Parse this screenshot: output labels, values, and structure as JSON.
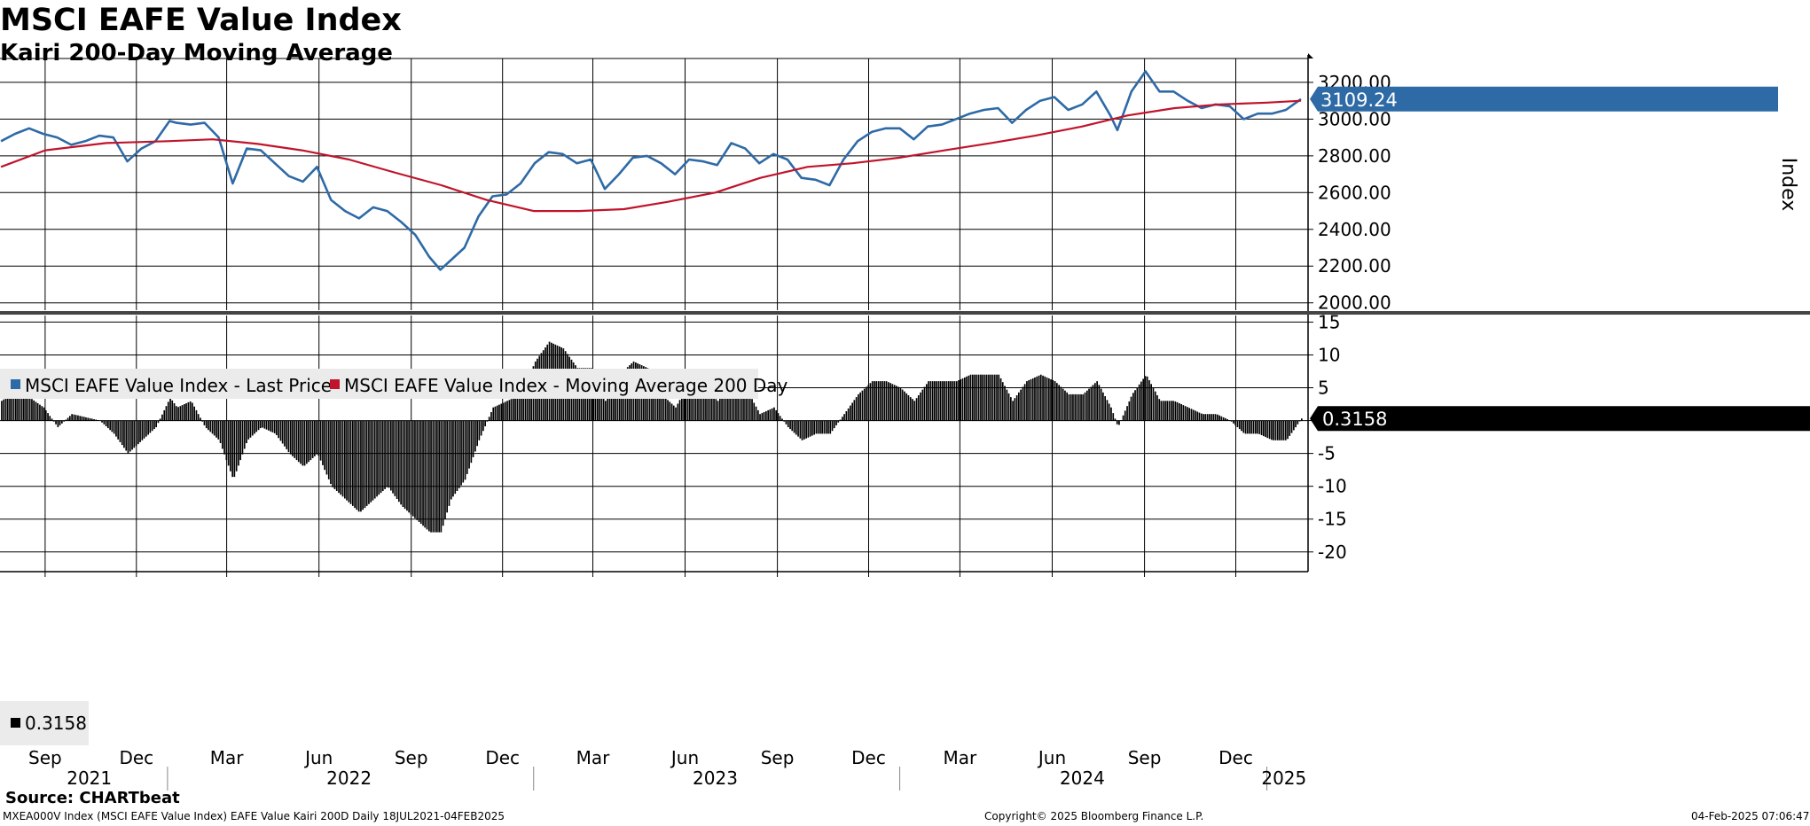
{
  "title": "MSCI EAFE Value Index",
  "subtitle": "Kairi 200-Day Moving Average",
  "colors": {
    "price": "#2e6aa6",
    "ma": "#c0142c",
    "bars": "#000000",
    "grid": "#000000",
    "legend_bg": "#ebebeb",
    "last_tag_bg": "#2e6aa6"
  },
  "chart_data": [
    {
      "type": "line",
      "title": "",
      "ylabel": "Index",
      "ylim": [
        1960,
        3330
      ],
      "ytick_labels": [
        "2000.00",
        "2200.00",
        "2400.00",
        "2600.00",
        "2800.00",
        "3000.00",
        "3200.00"
      ],
      "ytick_values": [
        2000,
        2200,
        2400,
        2600,
        2800,
        3000,
        3200
      ],
      "x_range": [
        "2021-07-18",
        "2025-02-04"
      ],
      "last_value_label": "3109.24",
      "legend": [
        {
          "label": "MSCI EAFE Value Index - Last Price",
          "color": "#2e6aa6"
        },
        {
          "label": "MSCI EAFE Value Index - Moving Average 200 Day",
          "color": "#c0142c"
        }
      ],
      "series": [
        {
          "name": "MSCI EAFE Value Index - Last Price",
          "x": [
            "2021-07-19",
            "2021-08-02",
            "2021-08-16",
            "2021-08-30",
            "2021-09-13",
            "2021-09-27",
            "2021-10-11",
            "2021-10-25",
            "2021-11-08",
            "2021-11-22",
            "2021-12-06",
            "2021-12-20",
            "2022-01-03",
            "2022-01-10",
            "2022-01-24",
            "2022-02-07",
            "2022-02-21",
            "2022-03-07",
            "2022-03-21",
            "2022-04-04",
            "2022-04-18",
            "2022-05-02",
            "2022-05-16",
            "2022-05-30",
            "2022-06-13",
            "2022-06-27",
            "2022-07-11",
            "2022-07-25",
            "2022-08-08",
            "2022-08-22",
            "2022-09-05",
            "2022-09-19",
            "2022-09-30",
            "2022-10-10",
            "2022-10-24",
            "2022-11-07",
            "2022-11-21",
            "2022-12-05",
            "2022-12-19",
            "2023-01-02",
            "2023-01-16",
            "2023-01-30",
            "2023-02-13",
            "2023-02-27",
            "2023-03-13",
            "2023-03-27",
            "2023-04-10",
            "2023-04-24",
            "2023-05-08",
            "2023-05-22",
            "2023-06-05",
            "2023-06-19",
            "2023-07-03",
            "2023-07-17",
            "2023-07-31",
            "2023-08-14",
            "2023-08-28",
            "2023-09-11",
            "2023-09-25",
            "2023-10-09",
            "2023-10-23",
            "2023-11-06",
            "2023-11-20",
            "2023-12-04",
            "2023-12-18",
            "2024-01-01",
            "2024-01-15",
            "2024-01-29",
            "2024-02-12",
            "2024-02-26",
            "2024-03-11",
            "2024-03-25",
            "2024-04-08",
            "2024-04-22",
            "2024-05-06",
            "2024-05-20",
            "2024-06-03",
            "2024-06-17",
            "2024-07-01",
            "2024-07-15",
            "2024-07-29",
            "2024-08-05",
            "2024-08-19",
            "2024-09-02",
            "2024-09-16",
            "2024-09-30",
            "2024-10-14",
            "2024-10-28",
            "2024-11-11",
            "2024-11-25",
            "2024-12-09",
            "2024-12-23",
            "2025-01-06",
            "2025-01-20",
            "2025-02-04"
          ],
          "values": [
            2880,
            2920,
            2950,
            2920,
            2900,
            2860,
            2880,
            2910,
            2900,
            2770,
            2840,
            2880,
            2990,
            2980,
            2970,
            2980,
            2900,
            2650,
            2840,
            2830,
            2760,
            2690,
            2660,
            2740,
            2560,
            2500,
            2460,
            2520,
            2500,
            2440,
            2370,
            2250,
            2180,
            2230,
            2300,
            2470,
            2580,
            2590,
            2650,
            2760,
            2820,
            2810,
            2760,
            2780,
            2620,
            2700,
            2790,
            2800,
            2760,
            2700,
            2780,
            2770,
            2750,
            2870,
            2840,
            2760,
            2810,
            2780,
            2680,
            2670,
            2640,
            2780,
            2880,
            2930,
            2950,
            2950,
            2890,
            2960,
            2970,
            3000,
            3030,
            3050,
            3060,
            2980,
            3050,
            3100,
            3120,
            3050,
            3080,
            3150,
            3020,
            2940,
            3150,
            3260,
            3150,
            3150,
            3100,
            3060,
            3080,
            3070,
            3000,
            3030,
            3030,
            3050,
            3109.24
          ]
        },
        {
          "name": "MSCI EAFE Value Index - Moving Average 200 Day",
          "x": [
            "2021-07-19",
            "2021-09-01",
            "2021-11-01",
            "2022-01-01",
            "2022-02-15",
            "2022-04-01",
            "2022-05-15",
            "2022-07-01",
            "2022-08-15",
            "2022-10-01",
            "2022-11-15",
            "2023-01-01",
            "2023-02-15",
            "2023-04-01",
            "2023-05-15",
            "2023-07-01",
            "2023-08-15",
            "2023-10-01",
            "2023-11-15",
            "2024-01-01",
            "2024-02-15",
            "2024-04-01",
            "2024-05-15",
            "2024-07-01",
            "2024-08-15",
            "2024-10-01",
            "2024-11-15",
            "2025-01-01",
            "2025-02-04"
          ],
          "values": [
            2740,
            2830,
            2870,
            2880,
            2890,
            2865,
            2830,
            2780,
            2710,
            2640,
            2560,
            2500,
            2500,
            2510,
            2550,
            2600,
            2680,
            2740,
            2760,
            2790,
            2830,
            2870,
            2910,
            2960,
            3020,
            3060,
            3080,
            3090,
            3100
          ]
        }
      ]
    },
    {
      "type": "bar",
      "title": "",
      "ylim": [
        -23,
        16
      ],
      "ytick_labels": [
        "-20",
        "-15",
        "-10",
        "-5",
        "0",
        "5",
        "10",
        "15"
      ],
      "ytick_values": [
        -20,
        -15,
        -10,
        -5,
        0,
        5,
        10,
        15
      ],
      "x_range": [
        "2021-07-18",
        "2025-02-04"
      ],
      "last_value_label": "0.3158",
      "legend": [
        {
          "label": "0.3158",
          "color": "#000000"
        }
      ],
      "series": [
        {
          "name": "MSCI EAFE Value Index EAFE Value Kairi 200D",
          "x": [
            "2021-07-19",
            "2021-08-02",
            "2021-08-16",
            "2021-08-30",
            "2021-09-13",
            "2021-09-27",
            "2021-10-11",
            "2021-10-25",
            "2021-11-08",
            "2021-11-22",
            "2021-12-06",
            "2021-12-20",
            "2022-01-03",
            "2022-01-10",
            "2022-01-24",
            "2022-02-07",
            "2022-02-21",
            "2022-03-07",
            "2022-03-21",
            "2022-04-04",
            "2022-04-18",
            "2022-05-02",
            "2022-05-16",
            "2022-05-30",
            "2022-06-13",
            "2022-06-27",
            "2022-07-11",
            "2022-07-25",
            "2022-08-08",
            "2022-08-22",
            "2022-09-05",
            "2022-09-19",
            "2022-09-30",
            "2022-10-10",
            "2022-10-24",
            "2022-11-07",
            "2022-11-21",
            "2022-12-05",
            "2022-12-19",
            "2023-01-02",
            "2023-01-16",
            "2023-01-30",
            "2023-02-13",
            "2023-02-27",
            "2023-03-13",
            "2023-03-27",
            "2023-04-10",
            "2023-04-24",
            "2023-05-08",
            "2023-05-22",
            "2023-06-05",
            "2023-06-19",
            "2023-07-03",
            "2023-07-17",
            "2023-07-31",
            "2023-08-14",
            "2023-08-28",
            "2023-09-11",
            "2023-09-25",
            "2023-10-09",
            "2023-10-23",
            "2023-11-06",
            "2023-11-20",
            "2023-12-04",
            "2023-12-18",
            "2024-01-01",
            "2024-01-15",
            "2024-01-29",
            "2024-02-12",
            "2024-02-26",
            "2024-03-11",
            "2024-03-25",
            "2024-04-08",
            "2024-04-22",
            "2024-05-06",
            "2024-05-20",
            "2024-06-03",
            "2024-06-17",
            "2024-07-01",
            "2024-07-15",
            "2024-07-29",
            "2024-08-05",
            "2024-08-19",
            "2024-09-02",
            "2024-09-16",
            "2024-09-30",
            "2024-10-14",
            "2024-10-28",
            "2024-11-11",
            "2024-11-25",
            "2024-12-09",
            "2024-12-23",
            "2025-01-06",
            "2025-01-20",
            "2025-02-04"
          ],
          "values": [
            3,
            4.5,
            3.5,
            2,
            -1,
            1,
            0.5,
            0,
            -2,
            -5,
            -3,
            -1,
            3.5,
            2,
            3,
            -1,
            -3,
            -9,
            -3,
            -1,
            -2,
            -5,
            -7,
            -5,
            -10,
            -12,
            -14,
            -12,
            -10,
            -13,
            -15,
            -17,
            -17,
            -12,
            -9,
            -3,
            2,
            3,
            4,
            9,
            12,
            11,
            8,
            8,
            3,
            7,
            9,
            8,
            4,
            2,
            6,
            5,
            3,
            6,
            5,
            1,
            2,
            -1,
            -3,
            -2,
            -2,
            1,
            4,
            6,
            6,
            5,
            3,
            6,
            6,
            6,
            7,
            7,
            7,
            3,
            6,
            7,
            6,
            4,
            4,
            6,
            2,
            -1,
            4,
            7,
            3,
            3,
            2,
            1,
            1,
            0,
            -2,
            -2,
            -3,
            -3,
            0.3158
          ]
        }
      ]
    }
  ],
  "x_axis": {
    "months": [
      {
        "date": "2021-09-01",
        "label": "Sep"
      },
      {
        "date": "2021-12-01",
        "label": "Dec"
      },
      {
        "date": "2022-03-01",
        "label": "Mar"
      },
      {
        "date": "2022-06-01",
        "label": "Jun"
      },
      {
        "date": "2022-09-01",
        "label": "Sep"
      },
      {
        "date": "2022-12-01",
        "label": "Dec"
      },
      {
        "date": "2023-03-01",
        "label": "Mar"
      },
      {
        "date": "2023-06-01",
        "label": "Jun"
      },
      {
        "date": "2023-09-01",
        "label": "Sep"
      },
      {
        "date": "2023-12-01",
        "label": "Dec"
      },
      {
        "date": "2024-03-01",
        "label": "Mar"
      },
      {
        "date": "2024-06-01",
        "label": "Jun"
      },
      {
        "date": "2024-09-01",
        "label": "Sep"
      },
      {
        "date": "2024-12-01",
        "label": "Dec"
      }
    ],
    "years": [
      {
        "label": "2021",
        "center": "2021-10-15"
      },
      {
        "label": "2022",
        "center": "2022-07-01"
      },
      {
        "label": "2023",
        "center": "2023-07-01"
      },
      {
        "label": "2024",
        "center": "2024-07-01"
      },
      {
        "label": "2025",
        "center": "2025-01-18"
      }
    ],
    "year_dividers": [
      "2022-01-01",
      "2023-01-01",
      "2024-01-01",
      "2025-01-01"
    ]
  },
  "footer": {
    "source": "Source: CHARTbeat",
    "description": "MXEA000V Index (MSCI EAFE Value Index) EAFE Value Kairi 200D  Daily 18JUL2021-04FEB2025",
    "copyright": "Copyright© 2025 Bloomberg Finance L.P.",
    "timestamp": "04-Feb-2025 07:06:47"
  }
}
